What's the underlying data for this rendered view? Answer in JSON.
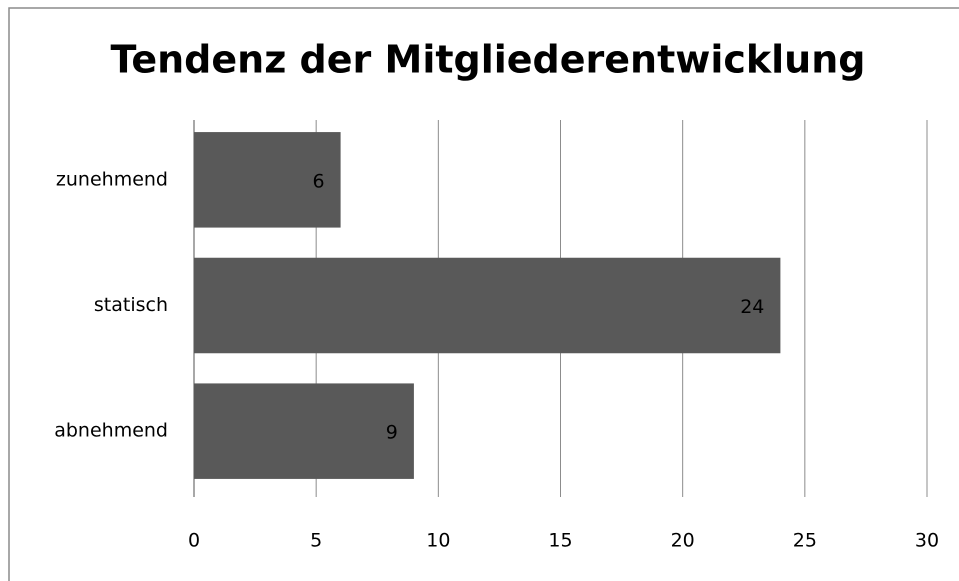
{
  "chart_data": {
    "type": "bar",
    "orientation": "horizontal",
    "title": "Tendenz der Mitgliederentwicklung",
    "categories": [
      "zunehmend",
      "statisch",
      "abnehmend"
    ],
    "values": [
      6,
      24,
      9
    ],
    "color": "#595959",
    "xlim": [
      0,
      30
    ],
    "xticks": [
      0,
      5,
      10,
      15,
      20,
      25,
      30
    ],
    "grid": true
  }
}
